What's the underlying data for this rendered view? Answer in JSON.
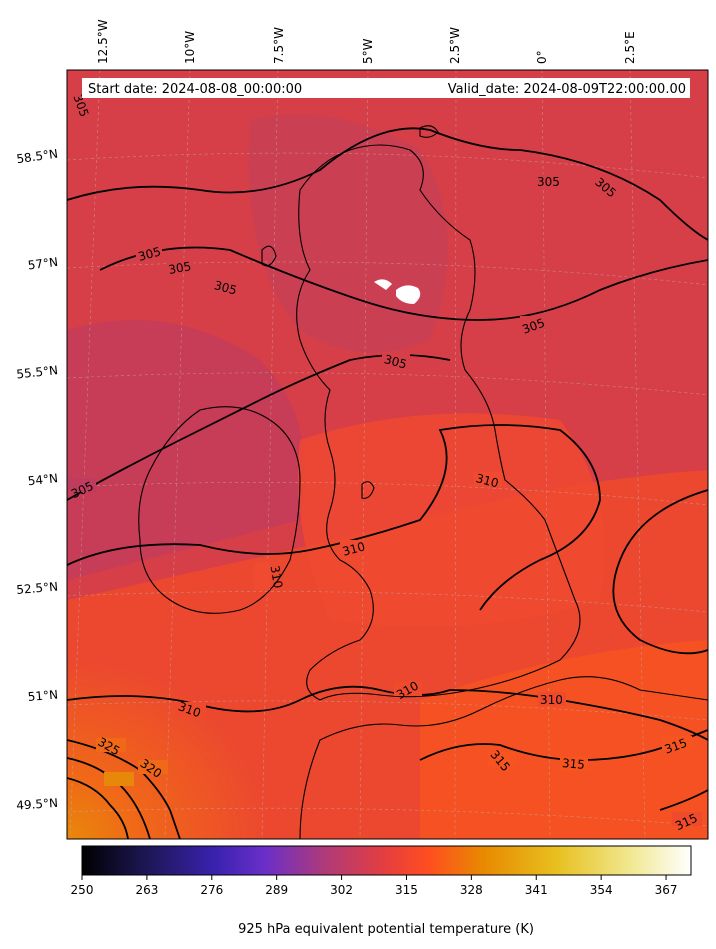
{
  "header": {
    "start_text": "Start date: 2024-08-08_00:00:00",
    "valid_text": "Valid_date: 2024-08-09T22:00:00.00"
  },
  "longitude_ticks": [
    "12.5°W",
    "10°W",
    "7.5°W",
    "5°W",
    "2.5°W",
    "0°",
    "2.5°E"
  ],
  "latitude_ticks": [
    "58.5°N",
    "57°N",
    "55.5°N",
    "54°N",
    "52.5°N",
    "51°N",
    "49.5°N"
  ],
  "contour_labels": [
    "305",
    "305",
    "305",
    "305",
    "305",
    "305",
    "305",
    "305",
    "305",
    "310",
    "310",
    "310",
    "310",
    "310",
    "310",
    "315",
    "315",
    "315",
    "315",
    "320",
    "325"
  ],
  "colorbar": {
    "label": "925 hPa equivalent potential temperature (K)",
    "ticks": [
      "250",
      "263",
      "276",
      "289",
      "302",
      "315",
      "328",
      "341",
      "354",
      "367"
    ],
    "min": 250,
    "max": 372,
    "colormap": "CMRmap-like: black → indigo → purple → magenta/red → orange → yellow → white",
    "colors": [
      "#000000",
      "#1c1650",
      "#3a22b0",
      "#6a2fc8",
      "#b03a78",
      "#e63e3e",
      "#ff4e20",
      "#e88a00",
      "#e8c020",
      "#f0e890",
      "#ffffff"
    ]
  },
  "field": {
    "quantity": "925 hPa equivalent potential temperature",
    "unit": "K",
    "contour_levels": [
      305,
      310,
      315,
      320,
      325
    ]
  }
}
